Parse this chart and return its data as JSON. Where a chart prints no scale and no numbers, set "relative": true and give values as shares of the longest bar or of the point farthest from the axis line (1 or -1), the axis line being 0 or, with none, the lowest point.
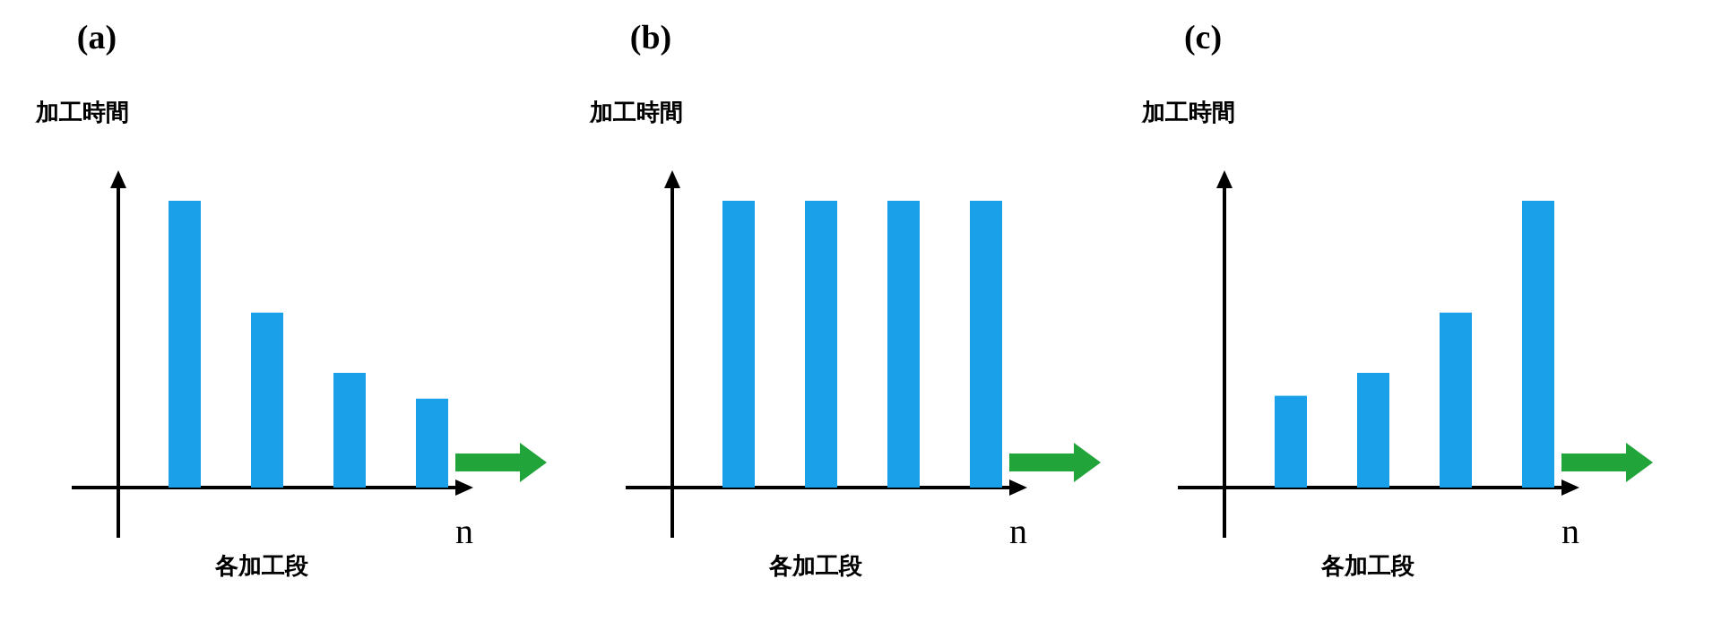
{
  "chart_data": [
    {
      "type": "bar",
      "title": "(a)",
      "xlabel": "各加工段",
      "ylabel": "加工時間",
      "annotations": [
        "n"
      ],
      "categories": [
        null,
        null,
        null,
        null
      ],
      "values": [
        1,
        0.61,
        0.4,
        0.31
      ],
      "color": "#1aa0e8",
      "relative": true
    },
    {
      "type": "bar",
      "title": "(b)",
      "xlabel": "各加工段",
      "ylabel": "加工時間",
      "annotations": [
        "n"
      ],
      "categories": [
        null,
        null,
        null,
        null
      ],
      "values": [
        1,
        1,
        1,
        1
      ],
      "color": "#1aa0e8",
      "relative": true
    },
    {
      "type": "bar",
      "title": "(c)",
      "xlabel": "各加工段",
      "ylabel": "加工時間",
      "annotations": [
        "n"
      ],
      "categories": [
        null,
        null,
        null,
        null
      ],
      "values": [
        0.32,
        0.4,
        0.61,
        1
      ],
      "color": "#1aa0e8",
      "relative": true
    }
  ]
}
